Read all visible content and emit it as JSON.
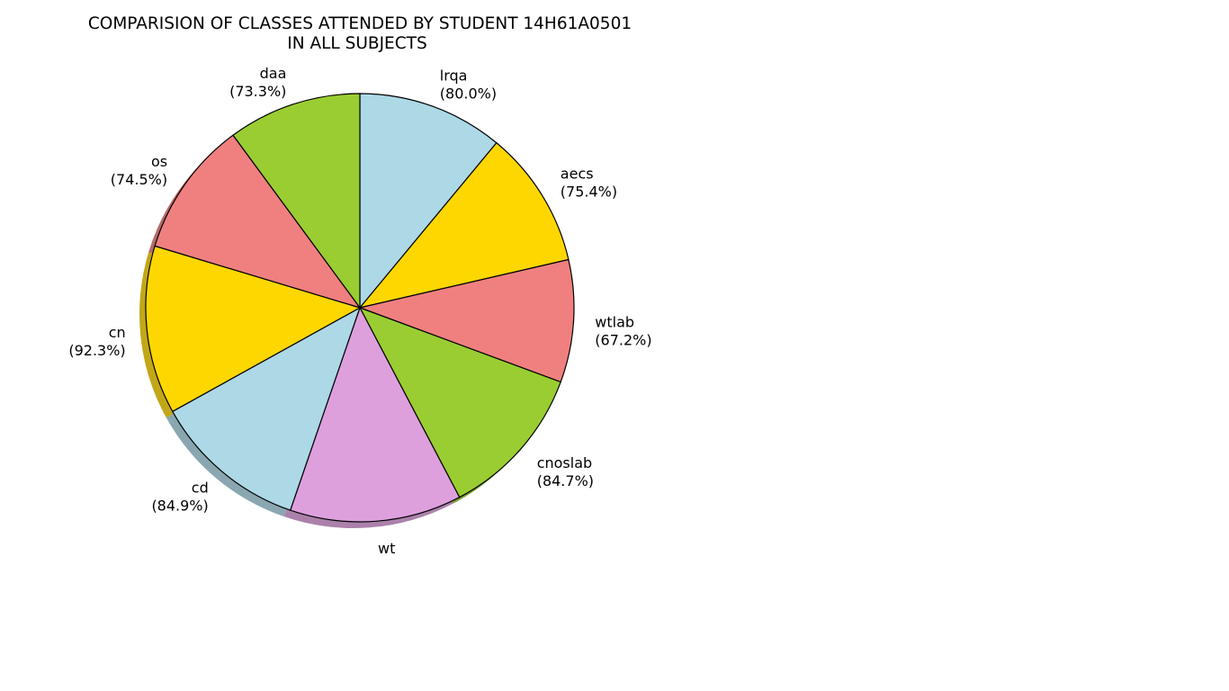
{
  "chart_data": {
    "type": "pie",
    "title_lines": [
      "COMPARISION OF CLASSES ATTENDED BY STUDENT 14H61A0501",
      "IN ALL SUBJECTS"
    ],
    "shadow": true,
    "start_angle_deg": 90,
    "direction": "clockwise",
    "slices": [
      {
        "label": "lrqa",
        "value": 80.0,
        "pct_label": "(80.0%)",
        "color": "#add8e6"
      },
      {
        "label": "aecs",
        "value": 75.4,
        "pct_label": "(75.4%)",
        "color": "#ffd700"
      },
      {
        "label": "wtlab",
        "value": 67.2,
        "pct_label": "(67.2%)",
        "color": "#f08080"
      },
      {
        "label": "cnoslab",
        "value": 84.7,
        "pct_label": "(84.7%)",
        "color": "#9acd32"
      },
      {
        "label": "wt",
        "value": 94.2,
        "pct_label": "",
        "color": "#dda0dd"
      },
      {
        "label": "cd",
        "value": 84.9,
        "pct_label": "(84.9%)",
        "color": "#add8e6"
      },
      {
        "label": "cn",
        "value": 92.3,
        "pct_label": "(92.3%)",
        "color": "#ffd700"
      },
      {
        "label": "os",
        "value": 74.5,
        "pct_label": "(74.5%)",
        "color": "#f08080"
      },
      {
        "label": "daa",
        "value": 73.3,
        "pct_label": "(73.3%)",
        "color": "#9acd32"
      }
    ]
  }
}
